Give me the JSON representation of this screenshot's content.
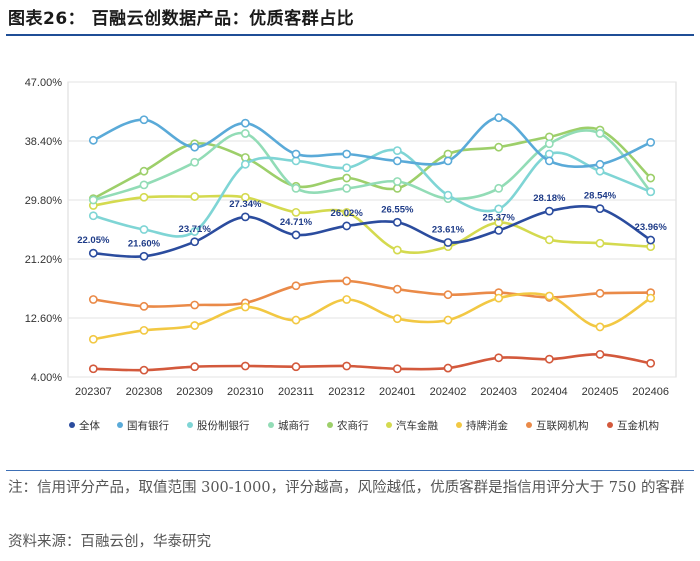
{
  "header": {
    "title": "图表26：  百融云创数据产品：优质客群占比"
  },
  "footer": {
    "note": "注：信用评分产品，取值范围 300-1000，评分越高，风险越低，优质客群是指信用评分大于 750 的客群",
    "source": "资料来源：百融云创，华泰研究"
  },
  "chart_data": {
    "type": "line",
    "title": "",
    "xlabel": "",
    "ylabel": "",
    "ylim": [
      4.0,
      47.0
    ],
    "yticks": [
      "4.00%",
      "12.60%",
      "21.20%",
      "29.80%",
      "38.40%",
      "47.00%"
    ],
    "ytick_values": [
      4.0,
      12.6,
      21.2,
      29.8,
      38.4,
      47.0
    ],
    "categories": [
      "202307",
      "202308",
      "202309",
      "202310",
      "202311",
      "202312",
      "202401",
      "202402",
      "202403",
      "202404",
      "202405",
      "202406"
    ],
    "legend_position": "bottom",
    "series": [
      {
        "name": "全体",
        "color": "#2b4c9e",
        "labeled": true,
        "values": [
          22.05,
          21.6,
          23.71,
          27.34,
          24.71,
          26.02,
          26.55,
          23.61,
          25.37,
          28.18,
          28.54,
          23.96
        ],
        "labels": [
          "22.05%",
          "21.60%",
          "23.71%",
          "27.34%",
          "24.71%",
          "26.02%",
          "26.55%",
          "23.61%",
          "25.37%",
          "28.18%",
          "28.54%",
          "23.96%"
        ]
      },
      {
        "name": "国有银行",
        "color": "#5aaad8",
        "values": [
          38.5,
          41.5,
          37.5,
          41.0,
          36.5,
          36.5,
          35.5,
          35.5,
          41.8,
          35.5,
          35.0,
          38.2
        ]
      },
      {
        "name": "股份制银行",
        "color": "#7fd5d5",
        "values": [
          27.5,
          25.5,
          25.2,
          35.0,
          35.5,
          34.5,
          37.0,
          30.5,
          28.5,
          36.5,
          34.0,
          31.0
        ]
      },
      {
        "name": "城商行",
        "color": "#92dcb6",
        "values": [
          29.8,
          32.0,
          35.3,
          39.5,
          31.5,
          31.5,
          32.5,
          30.0,
          31.5,
          38.0,
          39.5,
          31.0
        ]
      },
      {
        "name": "农商行",
        "color": "#9dcf6a",
        "values": [
          30.0,
          34.0,
          38.0,
          36.0,
          31.8,
          33.0,
          31.5,
          36.5,
          37.5,
          39.0,
          40.0,
          33.0
        ]
      },
      {
        "name": "汽车金融",
        "color": "#d4da4f",
        "values": [
          29.0,
          30.2,
          30.3,
          30.2,
          28.0,
          28.0,
          22.5,
          23.0,
          26.5,
          24.0,
          23.5,
          23.0
        ]
      },
      {
        "name": "持牌消金",
        "color": "#f2c843",
        "values": [
          9.5,
          10.8,
          11.5,
          14.2,
          12.3,
          15.3,
          12.5,
          12.3,
          15.5,
          15.8,
          11.3,
          15.5
        ]
      },
      {
        "name": "互联网机构",
        "color": "#ea8a48",
        "values": [
          15.3,
          14.3,
          14.5,
          14.8,
          17.3,
          18.0,
          16.8,
          16.0,
          16.3,
          15.6,
          16.2,
          16.3
        ]
      },
      {
        "name": "互金机构",
        "color": "#d3593c",
        "values": [
          5.2,
          5.0,
          5.5,
          5.6,
          5.5,
          5.6,
          5.2,
          5.3,
          6.8,
          6.6,
          7.3,
          6.0
        ]
      }
    ]
  }
}
